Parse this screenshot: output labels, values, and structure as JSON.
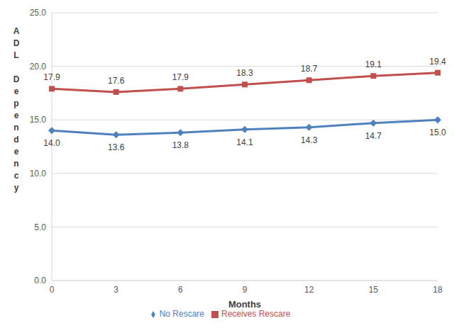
{
  "chart_data": {
    "type": "line",
    "x_label": "Months",
    "y_label": "ADL Dependency",
    "categories": [
      "0",
      "3",
      "6",
      "9",
      "12",
      "15",
      "18"
    ],
    "series": [
      {
        "name": "No Rescare",
        "color": "#4f81bd",
        "marker": "diamond",
        "values": [
          14.0,
          13.6,
          13.8,
          14.1,
          14.3,
          14.7,
          15.0
        ],
        "value_labels": [
          "14.0",
          "13.6",
          "13.8",
          "14.1",
          "14.3",
          "14.7",
          "15.0"
        ]
      },
      {
        "name": "Receives Rescare",
        "color": "#c0504d",
        "marker": "square",
        "values": [
          17.9,
          17.6,
          17.9,
          18.3,
          18.7,
          19.1,
          19.4
        ],
        "value_labels": [
          "17.9",
          "17.6",
          "17.9",
          "18.3",
          "18.7",
          "19.1",
          "19.4"
        ]
      }
    ],
    "ylim": [
      0,
      25
    ],
    "yticks": [
      {
        "value": 0,
        "label": "0.0"
      },
      {
        "value": 5,
        "label": "5.0"
      },
      {
        "value": 10,
        "label": "10.0"
      },
      {
        "value": 15,
        "label": "15.0"
      },
      {
        "value": 20,
        "label": "20.0"
      },
      {
        "value": 25,
        "label": "25.0"
      }
    ],
    "grid": true,
    "data_labels": true,
    "legend": "bottom"
  }
}
